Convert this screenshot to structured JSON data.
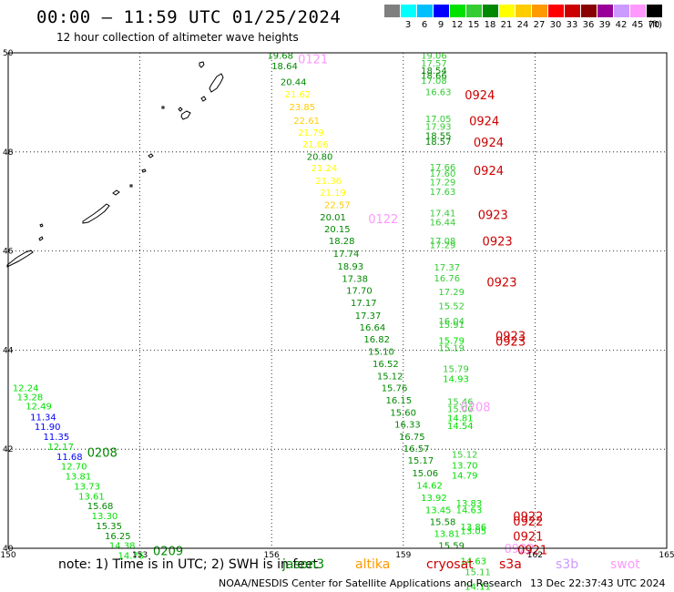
{
  "header": {
    "title": "00:00 – 11:59 UTC 01/25/2024",
    "subtitle": "12 hour collection of altimeter wave heights",
    "unit": "(ft)"
  },
  "legend": {
    "bins": [
      {
        "label": "",
        "color": "#7f7f7f"
      },
      {
        "label": "3",
        "color": "#00ffff"
      },
      {
        "label": "6",
        "color": "#00bfff"
      },
      {
        "label": "9",
        "color": "#0000ff"
      },
      {
        "label": "12",
        "color": "#00e100"
      },
      {
        "label": "15",
        "color": "#33cc33"
      },
      {
        "label": "18",
        "color": "#008800"
      },
      {
        "label": "21",
        "color": "#ffff00"
      },
      {
        "label": "24",
        "color": "#ffcc00"
      },
      {
        "label": "27",
        "color": "#ff9900"
      },
      {
        "label": "30",
        "color": "#ff0000"
      },
      {
        "label": "33",
        "color": "#cc0000"
      },
      {
        "label": "36",
        "color": "#880000"
      },
      {
        "label": "39",
        "color": "#990099"
      },
      {
        "label": "42",
        "color": "#cc99ff"
      },
      {
        "label": "45",
        "color": "#ff99ff"
      },
      {
        "label": "70",
        "color": "#000000"
      }
    ]
  },
  "axes": {
    "lon_labels": [
      "150",
      "153",
      "156",
      "159",
      "162",
      "165"
    ],
    "lat_labels": [
      "50",
      "48",
      "46",
      "44",
      "42",
      "40"
    ]
  },
  "footer": {
    "note": "note: 1) Time is in UTC; 2) SWH is in feet",
    "satellites": [
      {
        "name": "jason3",
        "color": "#008800"
      },
      {
        "name": "altika",
        "color": "#ff9900"
      },
      {
        "name": "cryosat",
        "color": "#cc0000"
      },
      {
        "name": "s3a",
        "color": "#cc0000"
      },
      {
        "name": "s3b",
        "color": "#cc99ff"
      },
      {
        "name": "swot",
        "color": "#ff99ff"
      }
    ],
    "credit": "NOAA/NESDIS Center for Satellite Applications and Research",
    "timestamp": "13 Dec 22:37:43 UTC 2024"
  },
  "tracks": [
    {
      "name": "track-east",
      "points": [
        {
          "lon": 159.4,
          "lat": 49.95,
          "v": "19.06",
          "c": "#33cc33"
        },
        {
          "lon": 159.4,
          "lat": 49.8,
          "v": "17.57",
          "c": "#33cc33"
        },
        {
          "lon": 159.4,
          "lat": 49.65,
          "v": "18.54",
          "c": "#008800"
        },
        {
          "lon": 159.4,
          "lat": 49.55,
          "v": "18.66",
          "c": "#008800"
        },
        {
          "lon": 159.4,
          "lat": 49.45,
          "v": "17.08",
          "c": "#33cc33"
        },
        {
          "lon": 159.5,
          "lat": 49.22,
          "v": "16.63",
          "c": "#33cc33"
        },
        {
          "lon": 159.5,
          "lat": 48.68,
          "v": "17.05",
          "c": "#33cc33"
        },
        {
          "lon": 159.5,
          "lat": 48.52,
          "v": "17.93",
          "c": "#33cc33"
        },
        {
          "lon": 159.5,
          "lat": 48.34,
          "v": "18.55",
          "c": "#008800"
        },
        {
          "lon": 159.5,
          "lat": 48.22,
          "v": "18.57",
          "c": "#008800"
        },
        {
          "lon": 159.6,
          "lat": 47.7,
          "v": "17.66",
          "c": "#33cc33"
        },
        {
          "lon": 159.6,
          "lat": 47.57,
          "v": "17.60",
          "c": "#33cc33"
        },
        {
          "lon": 159.6,
          "lat": 47.4,
          "v": "17.29",
          "c": "#33cc33"
        },
        {
          "lon": 159.6,
          "lat": 47.21,
          "v": "17.63",
          "c": "#33cc33"
        },
        {
          "lon": 159.6,
          "lat": 46.77,
          "v": "17.41",
          "c": "#33cc33"
        },
        {
          "lon": 159.6,
          "lat": 46.59,
          "v": "16.44",
          "c": "#33cc33"
        },
        {
          "lon": 159.6,
          "lat": 46.21,
          "v": "17.08",
          "c": "#33cc33"
        },
        {
          "lon": 159.6,
          "lat": 46.13,
          "v": "17.29",
          "c": "#33cc33"
        },
        {
          "lon": 159.7,
          "lat": 45.68,
          "v": "17.37",
          "c": "#33cc33"
        },
        {
          "lon": 159.7,
          "lat": 45.46,
          "v": "16.76",
          "c": "#33cc33"
        },
        {
          "lon": 159.8,
          "lat": 45.18,
          "v": "17.29",
          "c": "#33cc33"
        },
        {
          "lon": 159.8,
          "lat": 44.9,
          "v": "15.52",
          "c": "#33cc33"
        },
        {
          "lon": 159.8,
          "lat": 44.6,
          "v": "16.04",
          "c": "#33cc33"
        },
        {
          "lon": 159.8,
          "lat": 44.52,
          "v": "15.91",
          "c": "#33cc33"
        },
        {
          "lon": 159.8,
          "lat": 44.2,
          "v": "15.79",
          "c": "#00e100"
        },
        {
          "lon": 159.8,
          "lat": 44.05,
          "v": "15.19",
          "c": "#33cc33"
        },
        {
          "lon": 159.9,
          "lat": 43.63,
          "v": "15.79",
          "c": "#33cc33"
        },
        {
          "lon": 159.9,
          "lat": 43.43,
          "v": "14.93",
          "c": "#00e100"
        },
        {
          "lon": 160.0,
          "lat": 42.97,
          "v": "15.46",
          "c": "#33cc33"
        },
        {
          "lon": 160.0,
          "lat": 42.82,
          "v": "15.00",
          "c": "#33cc33"
        },
        {
          "lon": 160.0,
          "lat": 42.64,
          "v": "14.81",
          "c": "#00e100"
        },
        {
          "lon": 160.0,
          "lat": 42.48,
          "v": "14.54",
          "c": "#00e100"
        },
        {
          "lon": 160.1,
          "lat": 41.9,
          "v": "15.12",
          "c": "#33cc33"
        },
        {
          "lon": 160.1,
          "lat": 41.68,
          "v": "13.70",
          "c": "#00e100"
        },
        {
          "lon": 160.1,
          "lat": 41.48,
          "v": "14.79",
          "c": "#00e100"
        },
        {
          "lon": 160.2,
          "lat": 40.92,
          "v": "13.83",
          "c": "#00e100"
        },
        {
          "lon": 160.2,
          "lat": 40.78,
          "v": "14.63",
          "c": "#00e100"
        },
        {
          "lon": 160.3,
          "lat": 40.44,
          "v": "13.86",
          "c": "#00e100"
        },
        {
          "lon": 160.3,
          "lat": 40.36,
          "v": "13.05",
          "c": "#00e100"
        },
        {
          "lon": 160.3,
          "lat": 39.75,
          "v": "14.63",
          "c": "#00e100"
        },
        {
          "lon": 160.4,
          "lat": 39.53,
          "v": "15.11",
          "c": "#33cc33"
        },
        {
          "lon": 160.4,
          "lat": 39.24,
          "v": "14.11",
          "c": "#00e100"
        }
      ]
    },
    {
      "name": "track-middle",
      "points": [
        {
          "lon": 155.9,
          "lat": 49.95,
          "v": "19.68",
          "c": "#008800"
        },
        {
          "lon": 156.0,
          "lat": 49.74,
          "v": "18.64",
          "c": "#008800"
        },
        {
          "lon": 156.2,
          "lat": 49.42,
          "v": "20.44",
          "c": "#008800"
        },
        {
          "lon": 156.3,
          "lat": 49.17,
          "v": "21.62",
          "c": "#ffff00"
        },
        {
          "lon": 156.4,
          "lat": 48.92,
          "v": "23.85",
          "c": "#ffcc00"
        },
        {
          "lon": 156.5,
          "lat": 48.64,
          "v": "22.61",
          "c": "#ffcc00"
        },
        {
          "lon": 156.6,
          "lat": 48.4,
          "v": "21.79",
          "c": "#ffff00"
        },
        {
          "lon": 156.7,
          "lat": 48.16,
          "v": "21.06",
          "c": "#ffff00"
        },
        {
          "lon": 156.8,
          "lat": 47.91,
          "v": "20.80",
          "c": "#008800"
        },
        {
          "lon": 156.9,
          "lat": 47.68,
          "v": "21.24",
          "c": "#ffff00"
        },
        {
          "lon": 157.0,
          "lat": 47.43,
          "v": "21.36",
          "c": "#ffff00"
        },
        {
          "lon": 157.1,
          "lat": 47.19,
          "v": "21.19",
          "c": "#ffff00"
        },
        {
          "lon": 157.2,
          "lat": 46.94,
          "v": "22.57",
          "c": "#ffcc00"
        },
        {
          "lon": 157.1,
          "lat": 46.69,
          "v": "20.01",
          "c": "#008800"
        },
        {
          "lon": 157.2,
          "lat": 46.45,
          "v": "20.15",
          "c": "#008800"
        },
        {
          "lon": 157.3,
          "lat": 46.21,
          "v": "18.28",
          "c": "#008800"
        },
        {
          "lon": 157.4,
          "lat": 45.96,
          "v": "17.74",
          "c": "#008800"
        },
        {
          "lon": 157.5,
          "lat": 45.7,
          "v": "18.93",
          "c": "#008800"
        },
        {
          "lon": 157.6,
          "lat": 45.45,
          "v": "17.38",
          "c": "#008800"
        },
        {
          "lon": 157.7,
          "lat": 45.21,
          "v": "17.70",
          "c": "#008800"
        },
        {
          "lon": 157.8,
          "lat": 44.96,
          "v": "17.17",
          "c": "#008800"
        },
        {
          "lon": 157.9,
          "lat": 44.71,
          "v": "17.37",
          "c": "#008800"
        },
        {
          "lon": 158.0,
          "lat": 44.47,
          "v": "16.64",
          "c": "#008800"
        },
        {
          "lon": 158.1,
          "lat": 44.23,
          "v": "16.82",
          "c": "#008800"
        },
        {
          "lon": 158.2,
          "lat": 43.98,
          "v": "15.10",
          "c": "#008800"
        },
        {
          "lon": 158.3,
          "lat": 43.73,
          "v": "16.52",
          "c": "#008800"
        },
        {
          "lon": 158.4,
          "lat": 43.48,
          "v": "15.12",
          "c": "#008800"
        },
        {
          "lon": 158.5,
          "lat": 43.24,
          "v": "15.76",
          "c": "#008800"
        },
        {
          "lon": 158.6,
          "lat": 43.0,
          "v": "16.15",
          "c": "#008800"
        },
        {
          "lon": 158.7,
          "lat": 42.75,
          "v": "15.60",
          "c": "#008800"
        },
        {
          "lon": 158.8,
          "lat": 42.51,
          "v": "16.33",
          "c": "#008800"
        },
        {
          "lon": 158.9,
          "lat": 42.26,
          "v": "16.75",
          "c": "#008800"
        },
        {
          "lon": 159.0,
          "lat": 42.02,
          "v": "16.57",
          "c": "#008800"
        },
        {
          "lon": 159.1,
          "lat": 41.78,
          "v": "15.17",
          "c": "#008800"
        },
        {
          "lon": 159.2,
          "lat": 41.53,
          "v": "15.06",
          "c": "#008800"
        },
        {
          "lon": 159.3,
          "lat": 41.28,
          "v": "14.62",
          "c": "#00e100"
        },
        {
          "lon": 159.4,
          "lat": 41.03,
          "v": "13.92",
          "c": "#00e100"
        },
        {
          "lon": 159.5,
          "lat": 40.78,
          "v": "13.45",
          "c": "#00e100"
        },
        {
          "lon": 159.6,
          "lat": 40.54,
          "v": "15.58",
          "c": "#008800"
        },
        {
          "lon": 159.7,
          "lat": 40.3,
          "v": "13.81",
          "c": "#00e100"
        },
        {
          "lon": 159.8,
          "lat": 40.06,
          "v": "15.59",
          "c": "#008800"
        }
      ]
    },
    {
      "name": "track-west",
      "points": [
        {
          "lon": 150.1,
          "lat": 43.24,
          "v": "12.24",
          "c": "#00e100"
        },
        {
          "lon": 150.2,
          "lat": 43.06,
          "v": "13.28",
          "c": "#00e100"
        },
        {
          "lon": 150.4,
          "lat": 42.88,
          "v": "12.49",
          "c": "#00e100"
        },
        {
          "lon": 150.5,
          "lat": 42.66,
          "v": "11.34",
          "c": "#0000ff"
        },
        {
          "lon": 150.6,
          "lat": 42.46,
          "v": "11.90",
          "c": "#0000ff"
        },
        {
          "lon": 150.8,
          "lat": 42.26,
          "v": "11.35",
          "c": "#0000ff"
        },
        {
          "lon": 150.9,
          "lat": 42.06,
          "v": "12.17",
          "c": "#00e100"
        },
        {
          "lon": 151.1,
          "lat": 41.86,
          "v": "11.68",
          "c": "#0000ff"
        },
        {
          "lon": 151.2,
          "lat": 41.66,
          "v": "12.70",
          "c": "#00e100"
        },
        {
          "lon": 151.3,
          "lat": 41.46,
          "v": "13.81",
          "c": "#00e100"
        },
        {
          "lon": 151.5,
          "lat": 41.26,
          "v": "13.73",
          "c": "#00e100"
        },
        {
          "lon": 151.6,
          "lat": 41.06,
          "v": "13.61",
          "c": "#00e100"
        },
        {
          "lon": 151.8,
          "lat": 40.86,
          "v": "15.68",
          "c": "#008800"
        },
        {
          "lon": 151.9,
          "lat": 40.66,
          "v": "13.30",
          "c": "#00e100"
        },
        {
          "lon": 152.0,
          "lat": 40.46,
          "v": "15.35",
          "c": "#008800"
        },
        {
          "lon": 152.2,
          "lat": 40.26,
          "v": "16.25",
          "c": "#008800"
        },
        {
          "lon": 152.3,
          "lat": 40.06,
          "v": "14.38",
          "c": "#00e100"
        },
        {
          "lon": 152.5,
          "lat": 39.86,
          "v": "14.76",
          "c": "#00e100"
        }
      ]
    }
  ],
  "pass_times": [
    {
      "lon": 156.6,
      "lat": 49.88,
      "t": "0121",
      "c": "#ff99ff"
    },
    {
      "lon": 160.4,
      "lat": 49.15,
      "t": "0924",
      "c": "#cc0000"
    },
    {
      "lon": 160.5,
      "lat": 48.63,
      "t": "0924",
      "c": "#cc0000"
    },
    {
      "lon": 160.6,
      "lat": 48.2,
      "t": "0924",
      "c": "#cc0000"
    },
    {
      "lon": 160.6,
      "lat": 47.63,
      "t": "0924",
      "c": "#cc0000"
    },
    {
      "lon": 160.7,
      "lat": 46.74,
      "t": "0923",
      "c": "#cc0000"
    },
    {
      "lon": 158.2,
      "lat": 46.65,
      "t": "0122",
      "c": "#ff99ff"
    },
    {
      "lon": 160.8,
      "lat": 46.2,
      "t": "0923",
      "c": "#cc0000"
    },
    {
      "lon": 160.9,
      "lat": 45.38,
      "t": "0923",
      "c": "#cc0000"
    },
    {
      "lon": 161.1,
      "lat": 44.29,
      "t": "0923",
      "c": "#cc0000"
    },
    {
      "lon": 161.1,
      "lat": 44.18,
      "t": "0923",
      "c": "#cc0000"
    },
    {
      "lon": 160.3,
      "lat": 42.86,
      "t": "0208",
      "c": "#ff99ff"
    },
    {
      "lon": 151.8,
      "lat": 41.94,
      "t": "0208",
      "c": "#008800"
    },
    {
      "lon": 161.5,
      "lat": 40.65,
      "t": "0922",
      "c": "#cc0000"
    },
    {
      "lon": 161.5,
      "lat": 40.55,
      "t": "0922",
      "c": "#cc0000"
    },
    {
      "lon": 161.5,
      "lat": 40.25,
      "t": "0921",
      "c": "#cc0000"
    },
    {
      "lon": 161.3,
      "lat": 40.0,
      "t": "0922",
      "c": "#ff99ff"
    },
    {
      "lon": 161.6,
      "lat": 39.97,
      "t": "0921",
      "c": "#cc0000"
    },
    {
      "lon": 153.3,
      "lat": 39.95,
      "t": "0209",
      "c": "#008800"
    }
  ]
}
